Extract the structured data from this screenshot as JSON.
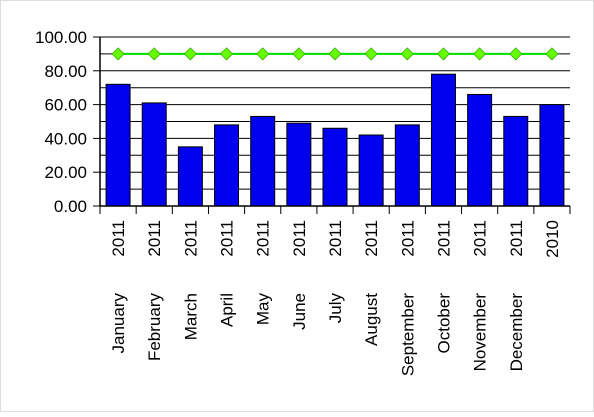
{
  "chart_data": {
    "type": "bar",
    "title": "",
    "xlabel": "",
    "ylabel": "",
    "ylim": [
      0,
      100
    ],
    "yticks": [
      "0.00",
      "20.00",
      "40.00",
      "60.00",
      "80.00",
      "100.00"
    ],
    "grid": "horizontal",
    "categories": [
      {
        "month": "January",
        "year": "2011"
      },
      {
        "month": "February",
        "year": "2011"
      },
      {
        "month": "March",
        "year": "2011"
      },
      {
        "month": "April",
        "year": "2011"
      },
      {
        "month": "May",
        "year": "2011"
      },
      {
        "month": "June",
        "year": "2011"
      },
      {
        "month": "July",
        "year": "2011"
      },
      {
        "month": "August",
        "year": "2011"
      },
      {
        "month": "September",
        "year": "2011"
      },
      {
        "month": "October",
        "year": "2011"
      },
      {
        "month": "November",
        "year": "2011"
      },
      {
        "month": "December",
        "year": "2011"
      },
      {
        "month": "",
        "year": "2010"
      }
    ],
    "series": [
      {
        "type": "bar",
        "color": "#0000ee",
        "values": [
          72,
          61,
          35,
          48,
          53,
          49,
          46,
          42,
          48,
          78,
          66,
          53,
          60
        ]
      },
      {
        "type": "line",
        "color": "#00dd00",
        "marker": "diamond",
        "values": [
          90,
          90,
          90,
          90,
          90,
          90,
          90,
          90,
          90,
          90,
          90,
          90,
          90
        ]
      }
    ]
  }
}
